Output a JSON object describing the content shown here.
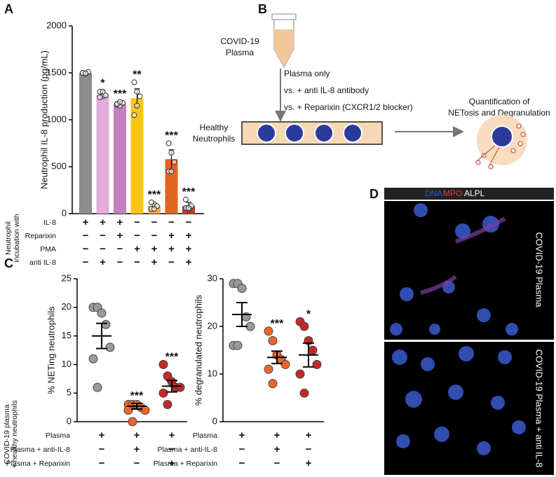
{
  "panel_labels": [
    "A",
    "B",
    "C",
    "D"
  ],
  "chart_data": [
    {
      "type": "bar",
      "y_label": "Neutrophil IL-8 production (pg/mL)",
      "ylim": [
        0,
        2000
      ],
      "yticks": [
        0,
        500,
        1000,
        1500,
        2000
      ],
      "values": [
        1500,
        1270,
        1170,
        1230,
        80,
        580,
        80
      ],
      "errors": [
        10,
        40,
        25,
        100,
        25,
        100,
        40
      ],
      "colors": [
        "#8c8c8c",
        "#e3acdb",
        "#c47fc0",
        "#f7c614",
        "#f4a93a",
        "#e0651e",
        "#c7372b"
      ],
      "points": [
        [
          1500,
          1490,
          1510,
          1500,
          1495
        ],
        [
          1300,
          1250,
          1260,
          1240,
          1300
        ],
        [
          1160,
          1150,
          1180,
          1170,
          1190
        ],
        [
          1400,
          1300,
          1250,
          1050,
          1150
        ],
        [
          50,
          100,
          80,
          120,
          50
        ],
        [
          750,
          650,
          550,
          450,
          450
        ],
        [
          150,
          50,
          80,
          60,
          60
        ]
      ],
      "significance": [
        null,
        "*",
        "***",
        "**",
        "***",
        "***",
        "***"
      ],
      "side_label": [
        "Neutrophil",
        "incubation with"
      ],
      "table": [
        {
          "label": "IL-8",
          "signs": [
            "+",
            "+",
            "+",
            "−",
            "−",
            "−",
            "−"
          ]
        },
        {
          "label": "Reparixin",
          "signs": [
            "−",
            "−",
            "+",
            "−",
            "−",
            "+",
            "+"
          ]
        },
        {
          "label": "PMA",
          "signs": [
            "−",
            "−",
            "−",
            "+",
            "+",
            "+",
            "+"
          ]
        },
        {
          "label": "anti IL-8",
          "signs": [
            "−",
            "+",
            "−",
            "−",
            "+",
            "−",
            "+"
          ]
        }
      ]
    },
    {
      "type": "dot",
      "y_label": "% NETing neutrophils",
      "ylim": [
        0,
        25
      ],
      "yticks": [
        0,
        5,
        10,
        15,
        20,
        25
      ],
      "values": [
        15,
        2.7,
        6.2
      ],
      "errors": [
        2.2,
        0.5,
        1.0
      ],
      "colors": [
        "#9a9a9a",
        "#f0642a",
        "#c62828"
      ],
      "points": [
        [
          20,
          20,
          19,
          17,
          13,
          11,
          6
        ],
        [
          3,
          3,
          3,
          2.5,
          2,
          2,
          0
        ],
        [
          10,
          8,
          7,
          6,
          6,
          5,
          3
        ]
      ],
      "significance": [
        null,
        "***",
        "***"
      ],
      "side_label": [
        "COVID-19 plasma",
        "+ healthy neutrophils"
      ],
      "table": [
        {
          "label": "Plasma",
          "signs": [
            "+",
            "+",
            "+"
          ]
        },
        {
          "label": "Plasma + anti-IL-8",
          "signs": [
            "−",
            "+",
            "−"
          ]
        },
        {
          "label": "Plasma + Reparixin",
          "signs": [
            "−",
            "−",
            "+"
          ]
        }
      ]
    },
    {
      "type": "dot",
      "y_label": "% degranulated neutrophils",
      "ylim": [
        0,
        30
      ],
      "yticks": [
        0,
        10,
        20,
        30
      ],
      "values": [
        22.5,
        13.5,
        14
      ],
      "errors": [
        2.5,
        1.3,
        2.5
      ],
      "colors": [
        "#9a9a9a",
        "#f0642a",
        "#c62828"
      ],
      "points": [
        [
          29,
          29,
          28,
          22,
          20,
          16,
          16
        ],
        [
          19,
          17,
          14,
          13,
          12,
          11,
          8
        ],
        [
          21,
          20,
          17,
          15,
          12,
          10,
          6
        ]
      ],
      "significance": [
        null,
        "***",
        "*"
      ],
      "table": [
        {
          "label": "Plasma",
          "signs": [
            "+",
            "+",
            "+"
          ]
        },
        {
          "label": "Plasma + anti-IL-8",
          "signs": [
            "−",
            "+",
            "−"
          ]
        },
        {
          "label": "Plasma + Reparixin",
          "signs": [
            "−",
            "−",
            "+"
          ]
        }
      ]
    }
  ],
  "diagram": {
    "tube_label": [
      "COVID-19",
      "Plasma"
    ],
    "conditions": [
      "Plasma only",
      "vs. + anti IL-8 antibody",
      "vs. + Reparixin (CXCR1/2 blocker)"
    ],
    "dish_label": [
      "Healthy",
      "Neutrophils"
    ],
    "readout": [
      "Quantification of",
      "NETosis and Degranulation"
    ]
  },
  "micrograph": {
    "channels": [
      "DNA",
      "MPO",
      "ALPL"
    ],
    "panels": [
      "COVID-19 Plasma",
      "COVID-19 Plasma + anti IL-8"
    ]
  }
}
